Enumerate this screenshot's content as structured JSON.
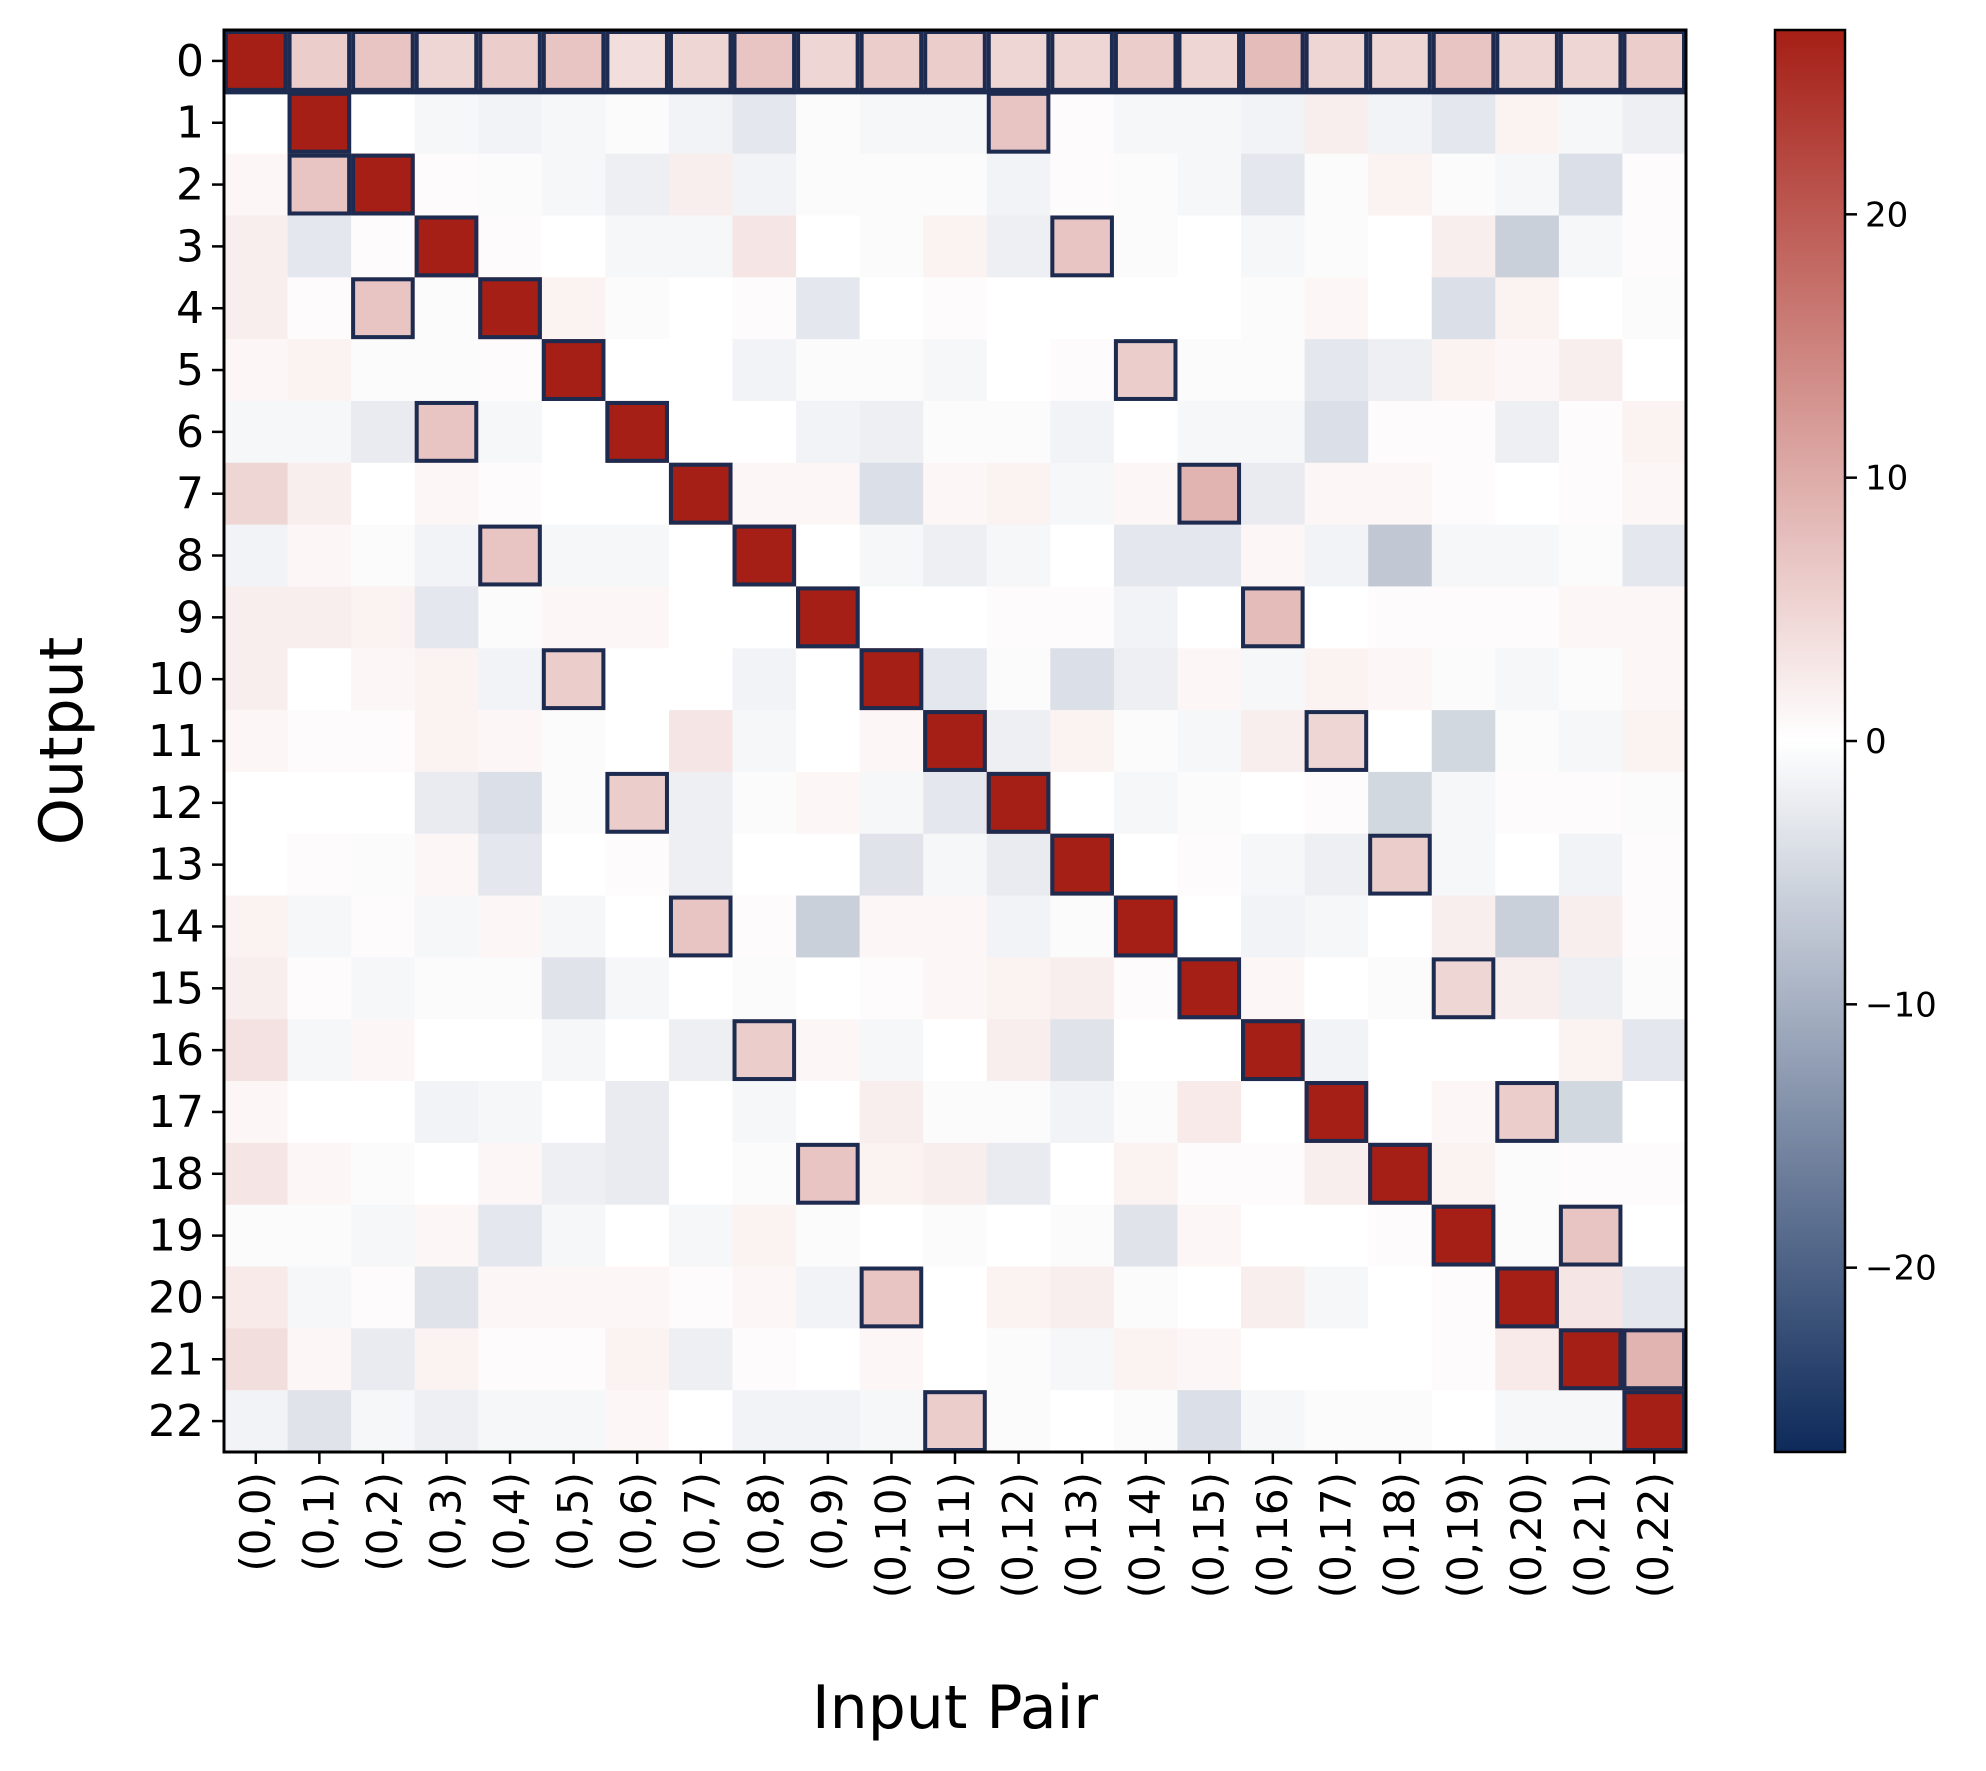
{
  "chart_data": {
    "type": "heatmap",
    "xlabel": "Input Pair",
    "ylabel": "Output",
    "x_categories": [
      "(0,0)",
      "(0,1)",
      "(0,2)",
      "(0,3)",
      "(0,4)",
      "(0,5)",
      "(0,6)",
      "(0,7)",
      "(0,8)",
      "(0,9)",
      "(0,10)",
      "(0,11)",
      "(0,12)",
      "(0,13)",
      "(0,14)",
      "(0,15)",
      "(0,16)",
      "(0,17)",
      "(0,18)",
      "(0,19)",
      "(0,20)",
      "(0,21)",
      "(0,22)"
    ],
    "y_categories": [
      "0",
      "1",
      "2",
      "3",
      "4",
      "5",
      "6",
      "7",
      "8",
      "9",
      "10",
      "11",
      "12",
      "13",
      "14",
      "15",
      "16",
      "17",
      "18",
      "19",
      "20",
      "21",
      "22"
    ],
    "colorbar": {
      "vmin": -27,
      "vmax": 27,
      "ticks": [
        -20,
        -10,
        0,
        10,
        20
      ],
      "tick_labels": [
        "−20",
        "−10",
        "0",
        "10",
        "20"
      ],
      "colormap": [
        "#0e2a5a",
        "#ffffff",
        "#a51f16"
      ]
    },
    "highlight_color": "#1c2b4f",
    "highlight_row": 0,
    "grid": false,
    "values": [
      [
        27,
        6,
        7,
        5,
        6,
        7,
        4,
        5,
        7,
        5,
        6,
        6,
        5,
        5,
        6,
        5,
        8,
        5,
        5,
        7,
        5,
        5,
        6
      ],
      [
        0,
        27,
        0,
        -1,
        -1.5,
        -1,
        -0.5,
        -1.5,
        -3,
        -0.5,
        -1,
        -1,
        7,
        0.5,
        -1,
        -1,
        -1.5,
        2,
        -1.5,
        -3,
        1.5,
        -1,
        -2
      ],
      [
        1,
        7,
        27,
        0.5,
        -0.5,
        -1,
        -2,
        2,
        -1.5,
        -0.5,
        -0.5,
        -0.5,
        -1.5,
        0.5,
        -0.5,
        -1,
        -3,
        -0.5,
        1.5,
        -0.5,
        -1,
        -4,
        0.5
      ],
      [
        2,
        -3,
        0.5,
        27,
        0.5,
        0,
        -1,
        -1,
        3,
        0,
        -0.5,
        1.5,
        -2,
        7,
        -0.5,
        0,
        -1,
        -0.5,
        0,
        2,
        -6,
        -1,
        0.5
      ],
      [
        2,
        0.5,
        7,
        -0.5,
        27,
        1.5,
        -0.5,
        0,
        0.5,
        -3,
        0,
        0.5,
        0,
        0,
        0,
        0,
        -0.5,
        1,
        0,
        -4,
        1.5,
        0,
        -0.5
      ],
      [
        1,
        1.5,
        -0.5,
        -0.5,
        0.5,
        27,
        0,
        0,
        -1.5,
        -0.5,
        -0.5,
        -1,
        0,
        0.5,
        6,
        -0.5,
        -0.5,
        -3,
        -2,
        1.5,
        1,
        2,
        0
      ],
      [
        -1,
        -1,
        -2.5,
        7,
        -1,
        0,
        27,
        0,
        0,
        -1.5,
        -2,
        -0.5,
        -0.5,
        -1.5,
        0,
        -1,
        -1,
        -4,
        0.5,
        0.5,
        -2,
        0.5,
        1.5
      ],
      [
        5,
        2,
        0,
        1,
        0.5,
        0,
        0,
        27,
        1,
        1,
        -4,
        1,
        1.5,
        -1,
        1,
        9,
        -2.5,
        1,
        1,
        0.5,
        0,
        0.5,
        1
      ],
      [
        -1.5,
        1,
        -0.5,
        -1.5,
        7,
        -1,
        -1,
        0,
        27,
        0,
        -1,
        -2,
        -1,
        0,
        -3,
        -3,
        1,
        -1.5,
        -7,
        -1,
        -1,
        -0.5,
        -3
      ],
      [
        2,
        2,
        1.5,
        -3,
        -0.5,
        1,
        1,
        0,
        0,
        27,
        0,
        0,
        0.5,
        0.5,
        -1.5,
        0,
        8,
        0,
        0.5,
        0.5,
        0.5,
        1,
        1
      ],
      [
        2,
        0,
        1,
        1.5,
        -1.5,
        6,
        0,
        0,
        -1.5,
        0,
        27,
        -3,
        -0.5,
        -4,
        -2,
        1,
        -1,
        1.5,
        1,
        -0.5,
        -1,
        -0.5,
        1
      ],
      [
        1,
        0.5,
        0.5,
        1.5,
        1,
        -0.5,
        0,
        3,
        -1,
        0,
        1,
        27,
        -2,
        1.5,
        -0.5,
        -1,
        2,
        5,
        0,
        -5,
        -0.5,
        -1,
        1.5
      ],
      [
        0,
        0,
        0,
        -2.5,
        -4,
        -0.5,
        6,
        -2,
        -0.5,
        1,
        -1,
        -3,
        27,
        0,
        -1,
        -0.5,
        0,
        0.5,
        -5,
        -1,
        0.5,
        0.5,
        -0.5
      ],
      [
        0,
        0.5,
        -0.5,
        1,
        -3,
        0,
        0.5,
        -2,
        0,
        0,
        -3.5,
        -1,
        -2.5,
        27,
        0,
        0.5,
        -1,
        -2,
        6,
        -1,
        0,
        -1.5,
        0.5
      ],
      [
        1.5,
        -1,
        0.5,
        -1,
        1,
        -1,
        0,
        7,
        0.5,
        -6,
        1,
        1,
        -1.5,
        -0.5,
        27,
        0,
        -1.5,
        -1,
        0,
        2,
        -6,
        2,
        0.5
      ],
      [
        2,
        0.5,
        -1,
        -0.5,
        -0.5,
        -3.5,
        -1,
        0,
        -0.5,
        0,
        0.5,
        1,
        1.5,
        2,
        0.5,
        27,
        1,
        0,
        -0.5,
        5,
        2,
        -2,
        -0.5
      ],
      [
        3.5,
        -1,
        1,
        0,
        0,
        -1,
        0,
        -2,
        6,
        1,
        -1,
        0,
        2,
        -3.5,
        0,
        0,
        27,
        -1.5,
        0,
        0,
        0,
        1.5,
        -3
      ],
      [
        1,
        0,
        0,
        -1.5,
        -1,
        0,
        -2.5,
        0,
        -1,
        0,
        2,
        -0.5,
        -0.5,
        -1.5,
        -0.5,
        2.5,
        0,
        27,
        0,
        1,
        6,
        -5,
        0
      ],
      [
        3,
        1,
        -0.5,
        0,
        1,
        -2,
        -2.5,
        0,
        -0.5,
        7,
        1.5,
        2,
        -2.5,
        0,
        1.5,
        0.5,
        0.5,
        2,
        27,
        1.5,
        -0.5,
        0.5,
        0.5
      ],
      [
        -0.5,
        -0.5,
        -1,
        1,
        -3,
        -1,
        0,
        -1,
        1.5,
        -0.5,
        0,
        -0.5,
        0,
        -0.5,
        -3.5,
        1,
        0,
        0,
        0.5,
        27,
        -0.5,
        7,
        0
      ],
      [
        2.5,
        -1,
        0.5,
        -3.5,
        1,
        1,
        1,
        0.5,
        1,
        -1.5,
        7,
        0,
        1.5,
        2,
        -0.5,
        0,
        2,
        -1,
        0,
        0.5,
        27,
        3,
        -3
      ],
      [
        4,
        1,
        -2.5,
        1.5,
        0.5,
        0.5,
        1.5,
        -2,
        0.5,
        0,
        1,
        0,
        -0.5,
        -1,
        1.5,
        1,
        0,
        0,
        0,
        0.5,
        2.5,
        27,
        9
      ],
      [
        -1.5,
        -3.5,
        -1,
        -2,
        -1,
        -1,
        1,
        0,
        -1.5,
        -1.5,
        -1,
        6,
        -0.5,
        0,
        -0.5,
        -4,
        -1,
        -0.5,
        -0.5,
        0,
        -1,
        -1,
        27
      ]
    ],
    "highlighted_cells": [
      [
        1,
        12
      ],
      [
        2,
        1
      ],
      [
        3,
        13
      ],
      [
        4,
        2
      ],
      [
        5,
        14
      ],
      [
        6,
        3
      ],
      [
        7,
        15
      ],
      [
        8,
        4
      ],
      [
        9,
        16
      ],
      [
        10,
        5
      ],
      [
        11,
        17
      ],
      [
        12,
        6
      ],
      [
        13,
        18
      ],
      [
        14,
        7
      ],
      [
        15,
        19
      ],
      [
        16,
        8
      ],
      [
        17,
        20
      ],
      [
        18,
        9
      ],
      [
        19,
        21
      ],
      [
        20,
        10
      ],
      [
        21,
        22
      ],
      [
        22,
        11
      ]
    ]
  }
}
